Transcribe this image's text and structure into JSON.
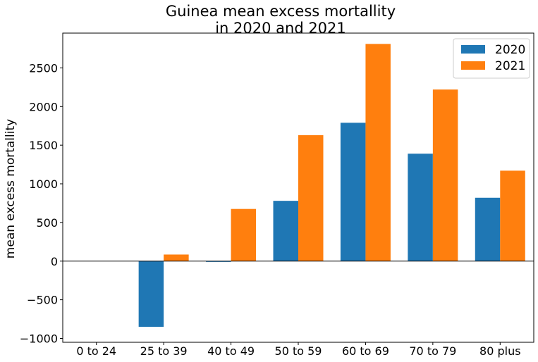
{
  "chart_data": {
    "type": "bar",
    "title": [
      "Guinea mean excess mortallity",
      "in 2020 and 2021"
    ],
    "xlabel": "",
    "ylabel": "mean excess mortallity",
    "categories": [
      "0 to 24",
      "25 to 39",
      "40 to 49",
      "50 to 59",
      "60 to 69",
      "70 to 79",
      "80 plus"
    ],
    "series": [
      {
        "name": "2020",
        "color": "#1f77b4",
        "values": [
          0,
          -850,
          -10,
          780,
          1790,
          1390,
          820
        ]
      },
      {
        "name": "2021",
        "color": "#ff7f0e",
        "values": [
          0,
          85,
          675,
          1630,
          2810,
          2220,
          1170
        ]
      }
    ],
    "ylim": [
      -1050,
      2950
    ],
    "yticks": [
      -1000,
      -500,
      0,
      500,
      1000,
      1500,
      2000,
      2500
    ],
    "ytick_labels": [
      "−1000",
      "−500",
      "0",
      "500",
      "1000",
      "1500",
      "2000",
      "2500"
    ],
    "zero_line": true,
    "grid": false,
    "legend_position": "upper right"
  }
}
